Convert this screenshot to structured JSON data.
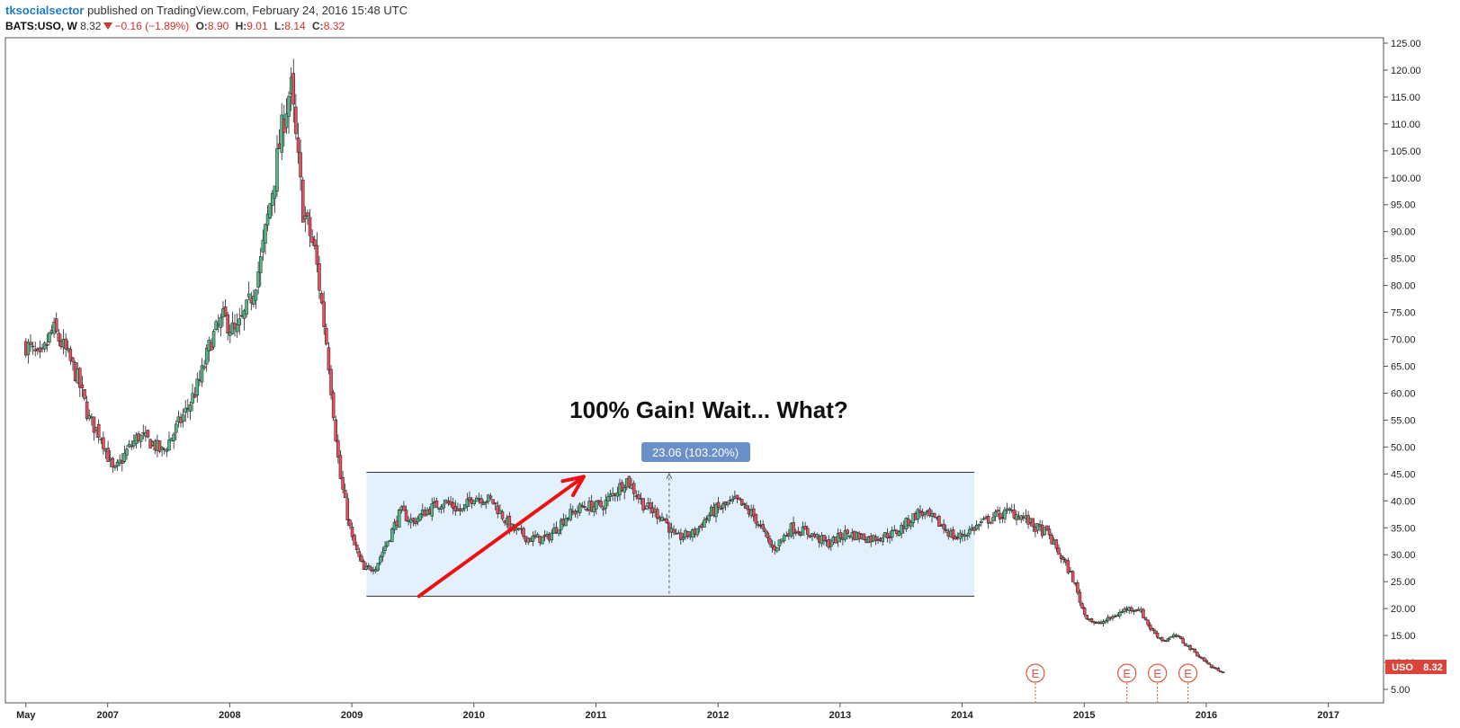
{
  "header": {
    "author": "tksocialsector",
    "published_text": "published on TradingView.com, February 24, 2016 15:48 UTC",
    "symbol": "BATS:USO, W",
    "last": "8.32",
    "change": "−0.16 (−1.89%)",
    "o_label": "O:",
    "o_value": "8.90",
    "h_label": "H:",
    "h_value": "9.01",
    "l_label": "L:",
    "l_value": "8.14",
    "c_label": "C:",
    "c_value": "8.32"
  },
  "annotation": {
    "headline": "100% Gain! Wait... What?",
    "range_label": "23.06 (103.20%)",
    "range_low": 22.3,
    "range_high": 45.3,
    "range_start": 2009.12,
    "range_end": 2014.1,
    "measure_x": 2011.6,
    "arrow": {
      "from_x": 2009.55,
      "from_y": 22.3,
      "to_x": 2010.9,
      "to_y": 44.5
    }
  },
  "price_label": {
    "symbol": "USO",
    "value": "8.32"
  },
  "earnings_markers": [
    {
      "label": "E",
      "x": 2014.6
    },
    {
      "label": "E",
      "x": 2015.35
    },
    {
      "label": "E",
      "x": 2015.6
    },
    {
      "label": "E",
      "x": 2015.85
    }
  ],
  "colors": {
    "up": "#53b987",
    "down": "#eb4d5c",
    "wick": "#222222",
    "box_fill": "#e3f0fd",
    "label_bg": "#6a8fc9",
    "arrow": "#ee1111",
    "price_tag": "#d9453a",
    "earnings": "#e0553c"
  },
  "chart_data": {
    "type": "candlestick",
    "title": "BATS:USO, W",
    "interval": "Weekly",
    "xlim": [
      2006.28,
      2017.15
    ],
    "ylim": [
      2.5,
      126
    ],
    "x_tick_labels": [
      "May",
      "2007",
      "2008",
      "2009",
      "2010",
      "2011",
      "2012",
      "2013",
      "2014",
      "2015",
      "2016",
      "2017"
    ],
    "x_tick_positions": [
      2006.33,
      2007,
      2008,
      2009,
      2010,
      2011,
      2012,
      2013,
      2014,
      2015,
      2016,
      2017
    ],
    "y_ticks": [
      5,
      10,
      15,
      20,
      25,
      30,
      35,
      40,
      45,
      50,
      55,
      60,
      65,
      70,
      75,
      80,
      85,
      90,
      95,
      100,
      105,
      110,
      115,
      120,
      125
    ],
    "y_tick_labels": [
      "5.00",
      "10.00",
      "15.00",
      "20.00",
      "25.00",
      "30.00",
      "35.00",
      "40.00",
      "45.00",
      "50.00",
      "55.00",
      "60.00",
      "65.00",
      "70.00",
      "75.00",
      "80.00",
      "85.00",
      "90.00",
      "95.00",
      "100.00",
      "105.00",
      "110.00",
      "115.00",
      "120.00",
      "125.00"
    ],
    "close_path": [
      [
        2006.33,
        69
      ],
      [
        2006.45,
        66
      ],
      [
        2006.55,
        72
      ],
      [
        2006.65,
        68
      ],
      [
        2006.75,
        63
      ],
      [
        2006.85,
        55
      ],
      [
        2006.95,
        52
      ],
      [
        2007.05,
        45
      ],
      [
        2007.15,
        49
      ],
      [
        2007.25,
        52
      ],
      [
        2007.35,
        51
      ],
      [
        2007.45,
        49
      ],
      [
        2007.55,
        53
      ],
      [
        2007.65,
        57
      ],
      [
        2007.75,
        62
      ],
      [
        2007.85,
        70
      ],
      [
        2007.95,
        74
      ],
      [
        2008.05,
        71
      ],
      [
        2008.15,
        76
      ],
      [
        2008.25,
        84
      ],
      [
        2008.35,
        98
      ],
      [
        2008.45,
        112
      ],
      [
        2008.5,
        117
      ],
      [
        2008.55,
        105
      ],
      [
        2008.6,
        94
      ],
      [
        2008.7,
        86
      ],
      [
        2008.8,
        68
      ],
      [
        2008.9,
        45
      ],
      [
        2009.0,
        33
      ],
      [
        2009.1,
        27
      ],
      [
        2009.2,
        28
      ],
      [
        2009.3,
        33
      ],
      [
        2009.4,
        38
      ],
      [
        2009.5,
        36
      ],
      [
        2009.6,
        38
      ],
      [
        2009.75,
        40
      ],
      [
        2009.9,
        38
      ],
      [
        2010.0,
        41
      ],
      [
        2010.15,
        40
      ],
      [
        2010.3,
        35
      ],
      [
        2010.45,
        33
      ],
      [
        2010.6,
        33
      ],
      [
        2010.75,
        37
      ],
      [
        2010.9,
        39
      ],
      [
        2011.05,
        39
      ],
      [
        2011.25,
        44
      ],
      [
        2011.4,
        39
      ],
      [
        2011.55,
        37
      ],
      [
        2011.65,
        33
      ],
      [
        2011.8,
        34
      ],
      [
        2011.95,
        38
      ],
      [
        2012.15,
        40
      ],
      [
        2012.3,
        37
      ],
      [
        2012.45,
        31
      ],
      [
        2012.6,
        35
      ],
      [
        2012.75,
        34
      ],
      [
        2012.9,
        32
      ],
      [
        2013.05,
        34
      ],
      [
        2013.25,
        33
      ],
      [
        2013.45,
        34
      ],
      [
        2013.65,
        38
      ],
      [
        2013.8,
        36
      ],
      [
        2013.95,
        33
      ],
      [
        2014.1,
        35
      ],
      [
        2014.25,
        37
      ],
      [
        2014.4,
        38
      ],
      [
        2014.5,
        37
      ],
      [
        2014.6,
        35
      ],
      [
        2014.7,
        34
      ],
      [
        2014.8,
        30
      ],
      [
        2014.9,
        26
      ],
      [
        2015.0,
        19
      ],
      [
        2015.1,
        17
      ],
      [
        2015.2,
        18
      ],
      [
        2015.35,
        20
      ],
      [
        2015.45,
        20
      ],
      [
        2015.55,
        16
      ],
      [
        2015.65,
        14
      ],
      [
        2015.75,
        15
      ],
      [
        2015.85,
        13
      ],
      [
        2015.95,
        11
      ],
      [
        2016.05,
        9
      ],
      [
        2016.14,
        8.32
      ]
    ]
  }
}
